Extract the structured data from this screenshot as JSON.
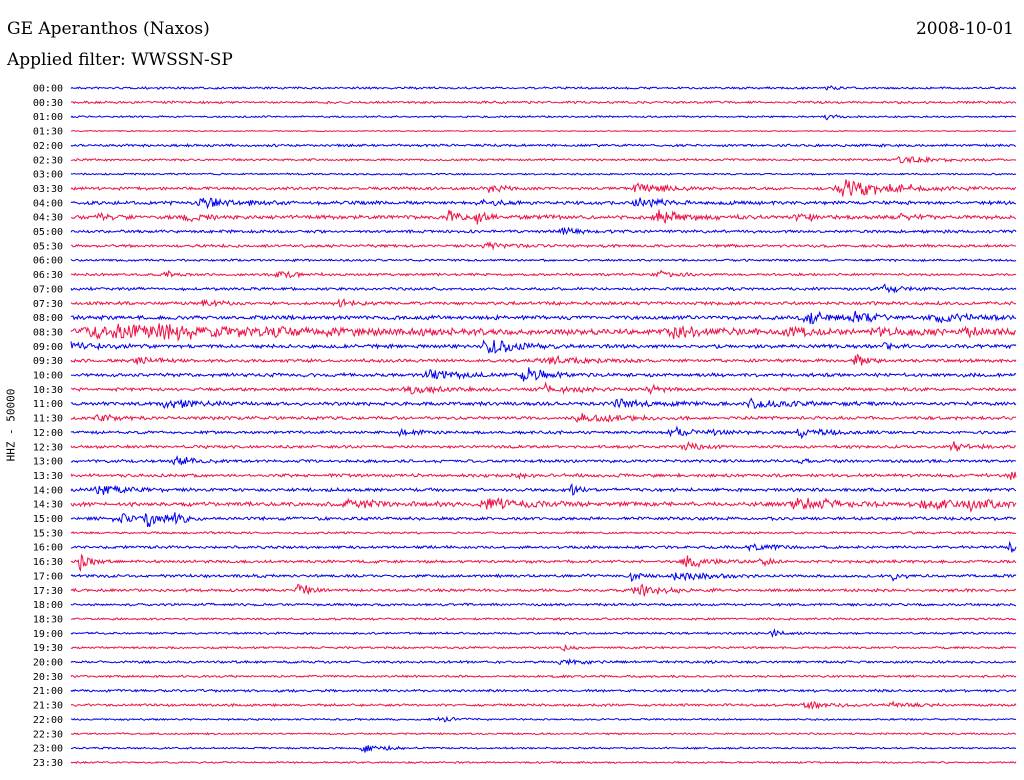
{
  "header": {
    "station": "GE Aperanthos (Naxos)",
    "date": "2008-10-01",
    "filter": "Applied filter: WWSSN-SP"
  },
  "chart_data": {
    "type": "line",
    "ylabel": "HHZ - 50000",
    "colors": [
      "#0000ee",
      "#ee1144"
    ],
    "rows": [
      "00:00",
      "00:30",
      "01:00",
      "01:30",
      "02:00",
      "02:30",
      "03:00",
      "03:30",
      "04:00",
      "04:30",
      "05:00",
      "05:30",
      "06:00",
      "06:30",
      "07:00",
      "07:30",
      "08:00",
      "08:30",
      "09:00",
      "09:30",
      "10:00",
      "10:30",
      "11:00",
      "11:30",
      "12:00",
      "12:30",
      "13:00",
      "13:30",
      "14:00",
      "14:30",
      "15:00",
      "15:30",
      "16:00",
      "16:30",
      "17:00",
      "17:30",
      "18:00",
      "18:30",
      "19:00",
      "19:30",
      "20:00",
      "20:30",
      "21:00",
      "21:30",
      "22:00",
      "22:30",
      "23:00",
      "23:30"
    ],
    "noise": [
      1.2,
      1.3,
      1.0,
      0.6,
      1.4,
      1.2,
      1.0,
      1.6,
      2.0,
      2.2,
      1.6,
      1.6,
      1.2,
      1.4,
      1.6,
      1.8,
      2.2,
      2.8,
      2.0,
      1.8,
      2.0,
      1.8,
      2.0,
      1.8,
      1.6,
      1.6,
      1.6,
      1.8,
      1.8,
      2.4,
      1.8,
      1.2,
      1.6,
      1.6,
      1.6,
      1.6,
      1.4,
      1.2,
      1.2,
      1.2,
      1.4,
      1.2,
      1.4,
      1.4,
      1.0,
      1.0,
      1.0,
      1.0
    ],
    "events": [
      [
        [
          0.8,
          3,
          0.01
        ]
      ],
      [],
      [
        [
          0.8,
          4,
          0.01
        ]
      ],
      [],
      [],
      [
        [
          0.88,
          4,
          0.04
        ]
      ],
      [],
      [
        [
          0.44,
          5,
          0.02
        ],
        [
          0.6,
          6,
          0.03
        ],
        [
          0.82,
          12,
          0.05
        ]
      ],
      [
        [
          0.14,
          6,
          0.03
        ],
        [
          0.43,
          3,
          0.02
        ],
        [
          0.6,
          7,
          0.02
        ]
      ],
      [
        [
          0.03,
          4,
          0.01
        ],
        [
          0.12,
          4,
          0.02
        ],
        [
          0.4,
          8,
          0.01
        ],
        [
          0.43,
          7,
          0.01
        ],
        [
          0.62,
          9,
          0.03
        ],
        [
          0.77,
          4,
          0.02
        ],
        [
          0.88,
          4,
          0.02
        ]
      ],
      [
        [
          0.52,
          4,
          0.02
        ]
      ],
      [
        [
          0.44,
          4,
          0.02
        ]
      ],
      [],
      [
        [
          0.1,
          4,
          0.01
        ],
        [
          0.22,
          5,
          0.02
        ],
        [
          0.62,
          4,
          0.02
        ]
      ],
      [
        [
          0.86,
          5,
          0.02
        ]
      ],
      [
        [
          0.14,
          3,
          0.02
        ],
        [
          0.28,
          5,
          0.02
        ]
      ],
      [
        [
          0.78,
          6,
          0.03
        ],
        [
          0.83,
          6,
          0.02
        ],
        [
          0.91,
          6,
          0.04
        ]
      ],
      [
        [
          0.05,
          8,
          0.2
        ],
        [
          0.64,
          5,
          0.05
        ],
        [
          0.76,
          5,
          0.03
        ],
        [
          0.85,
          6,
          0.04
        ],
        [
          0.95,
          5,
          0.04
        ]
      ],
      [
        [
          0.0,
          5,
          0.03
        ],
        [
          0.44,
          11,
          0.03
        ],
        [
          0.86,
          4,
          0.01
        ]
      ],
      [
        [
          0.07,
          4,
          0.02
        ],
        [
          0.5,
          5,
          0.04
        ],
        [
          0.83,
          9,
          0.01
        ]
      ],
      [
        [
          0.38,
          5,
          0.03
        ],
        [
          0.48,
          9,
          0.02
        ]
      ],
      [
        [
          0.36,
          4,
          0.04
        ],
        [
          0.5,
          6,
          0.03
        ],
        [
          0.61,
          4,
          0.02
        ]
      ],
      [
        [
          0.1,
          6,
          0.03
        ],
        [
          0.58,
          5,
          0.03
        ],
        [
          0.72,
          6,
          0.03
        ]
      ],
      [
        [
          0.03,
          4,
          0.02
        ],
        [
          0.54,
          5,
          0.04
        ]
      ],
      [
        [
          0.35,
          4,
          0.02
        ],
        [
          0.64,
          5,
          0.04
        ],
        [
          0.77,
          5,
          0.03
        ]
      ],
      [
        [
          0.65,
          4,
          0.02
        ],
        [
          0.93,
          6,
          0.02
        ]
      ],
      [
        [
          0.11,
          7,
          0.02
        ],
        [
          0.77,
          4,
          0.01
        ]
      ],
      [
        [
          0.47,
          4,
          0.01
        ],
        [
          0.99,
          7,
          0.02
        ]
      ],
      [
        [
          0.03,
          6,
          0.03
        ],
        [
          0.53,
          5,
          0.01
        ]
      ],
      [
        [
          0.29,
          5,
          0.04
        ],
        [
          0.44,
          6,
          0.04
        ],
        [
          0.77,
          7,
          0.04
        ],
        [
          0.9,
          6,
          0.03
        ],
        [
          0.95,
          7,
          0.02
        ]
      ],
      [
        [
          0.05,
          5,
          0.03
        ],
        [
          0.08,
          8,
          0.02
        ],
        [
          0.11,
          4,
          0.01
        ]
      ],
      [],
      [
        [
          0.72,
          4,
          0.02
        ],
        [
          0.99,
          9,
          0.01
        ]
      ],
      [
        [
          0.01,
          10,
          0.01
        ],
        [
          0.65,
          9,
          0.02
        ],
        [
          0.73,
          5,
          0.01
        ]
      ],
      [
        [
          0.59,
          7,
          0.01
        ],
        [
          0.64,
          6,
          0.03
        ],
        [
          0.87,
          5,
          0.01
        ]
      ],
      [
        [
          0.24,
          9,
          0.01
        ],
        [
          0.6,
          7,
          0.03
        ]
      ],
      [],
      [],
      [
        [
          0.74,
          5,
          0.01
        ]
      ],
      [
        [
          0.52,
          3,
          0.01
        ]
      ],
      [
        [
          0.52,
          3,
          0.02
        ]
      ],
      [],
      [],
      [
        [
          0.78,
          4,
          0.03
        ],
        [
          0.87,
          3,
          0.02
        ]
      ],
      [
        [
          0.39,
          3,
          0.02
        ]
      ],
      [],
      [
        [
          0.31,
          5,
          0.02
        ]
      ],
      []
    ]
  }
}
